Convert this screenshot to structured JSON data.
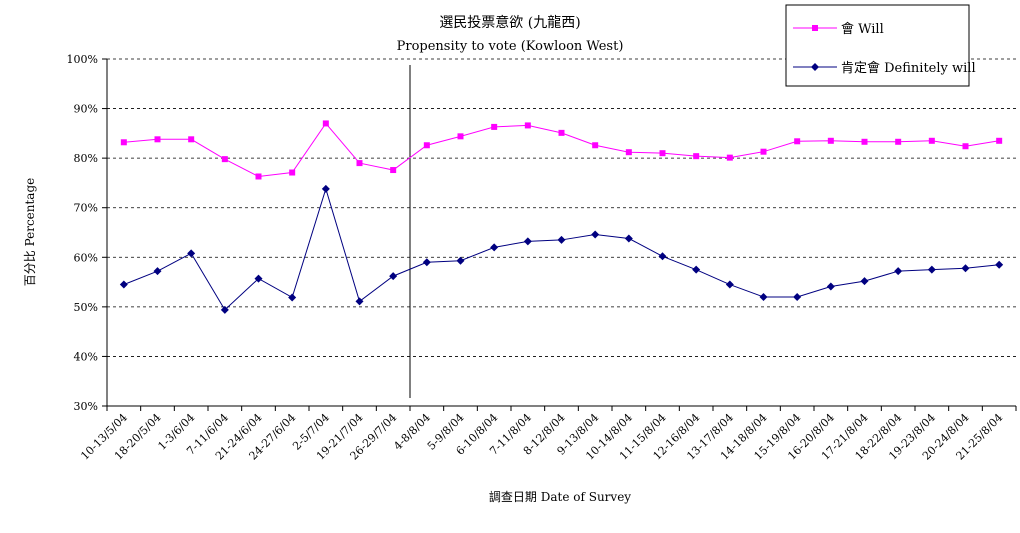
{
  "chart_data": {
    "type": "line",
    "title": "選民投票意欲 (九龍西)",
    "subtitle": "Propensity to vote (Kowloon West)",
    "xlabel": "調查日期 Date of Survey",
    "ylabel": "百分比 Percentage",
    "ylim": [
      30,
      100
    ],
    "yticks": [
      30,
      40,
      50,
      60,
      70,
      80,
      90,
      100
    ],
    "ytick_suffix": "%",
    "grid": "horizontal dashed",
    "legend_position": "top-right",
    "divider_after_category": "26-29/7/04",
    "categories": [
      "10-13/5/04",
      "18-20/5/04",
      "1-3/6/04",
      "7-11/6/04",
      "21-24/6/04",
      "24-27/6/04",
      "2-5/7/04",
      "19-21/7/04",
      "26-29/7/04",
      "4-8/8/04",
      "5-9/8/04",
      "6-10/8/04",
      "7-11/8/04",
      "8-12/8/04",
      "9-13/8/04",
      "10-14/8/04",
      "11-15/8/04",
      "12-16/8/04",
      "13-17/8/04",
      "14-18/8/04",
      "15-19/8/04",
      "16-20/8/04",
      "17-21/8/04",
      "18-22/8/04",
      "19-23/8/04",
      "20-24/8/04",
      "21-25/8/04"
    ],
    "series": [
      {
        "name": "會 Will",
        "color": "#ff00ff",
        "marker": "square",
        "values": [
          83.2,
          83.8,
          83.8,
          79.8,
          76.3,
          77.1,
          87.0,
          79.0,
          77.6,
          82.6,
          84.4,
          86.3,
          86.6,
          85.1,
          82.6,
          81.2,
          81.0,
          80.4,
          80.1,
          81.3,
          83.4,
          83.5,
          83.3,
          83.3,
          83.5,
          82.4,
          83.5
        ]
      },
      {
        "name": "肯定會 Definitely will",
        "color": "#000080",
        "marker": "diamond",
        "values": [
          54.5,
          57.2,
          60.8,
          49.4,
          55.7,
          51.9,
          73.8,
          51.1,
          56.2,
          59.0,
          59.3,
          62.0,
          63.2,
          63.5,
          64.6,
          63.8,
          60.2,
          57.5,
          54.5,
          52.0,
          52.0,
          54.1,
          55.2,
          57.2,
          57.5,
          57.8,
          58.5
        ]
      }
    ]
  }
}
